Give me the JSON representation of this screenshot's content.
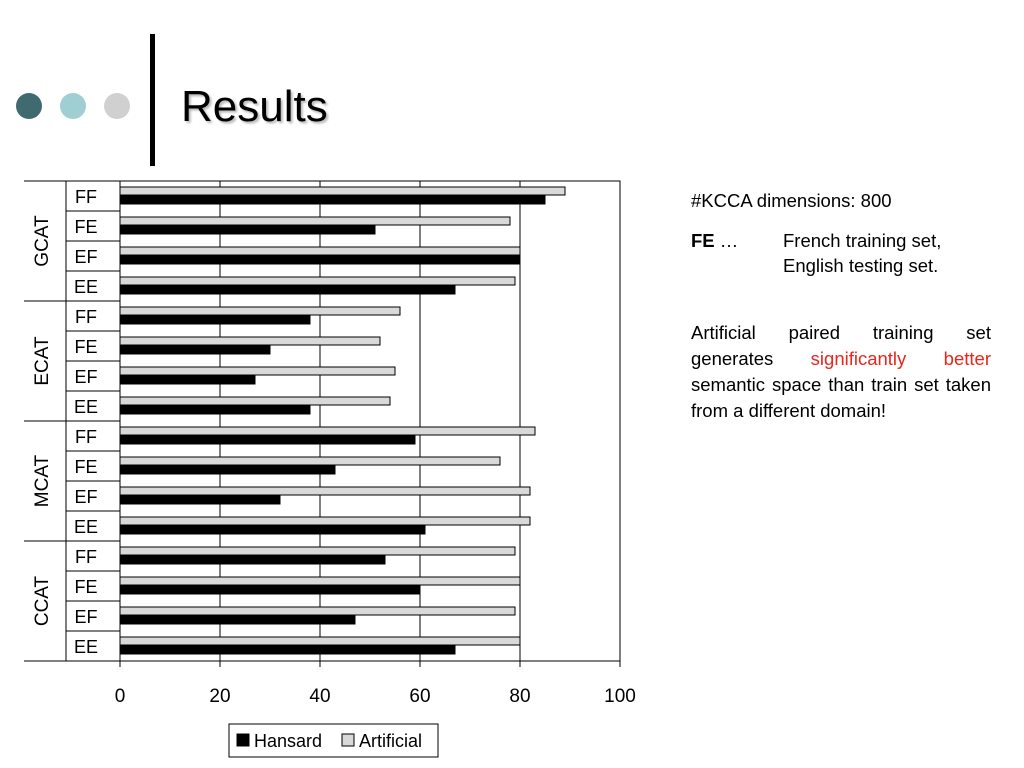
{
  "slide": {
    "title": "Results",
    "dot_colors": [
      "#3f6b70",
      "#9fcfd2",
      "#d0d0d0"
    ]
  },
  "side_panel": {
    "kcca": "#KCCA dimensions: 800",
    "fe_term": "FE",
    "fe_ellipsis": " …",
    "fe_line1": "French training set,",
    "fe_line2": "English testing set.",
    "para_part1": "Artificial paired training set generates ",
    "para_highlight": "significantly better",
    "para_part2": " semantic space than train set taken from a different domain!"
  },
  "chart_data": {
    "type": "bar",
    "orientation": "horizontal",
    "xlim": [
      0,
      100
    ],
    "xticks": [
      0,
      20,
      40,
      60,
      80,
      100
    ],
    "grid": true,
    "legend": "bottom",
    "groups": [
      {
        "name": "GCAT",
        "categories": [
          "FF",
          "FE",
          "EF",
          "EE"
        ]
      },
      {
        "name": "ECAT",
        "categories": [
          "FF",
          "FE",
          "EF",
          "EE"
        ]
      },
      {
        "name": "MCAT",
        "categories": [
          "FF",
          "FE",
          "EF",
          "EE"
        ]
      },
      {
        "name": "CCAT",
        "categories": [
          "FF",
          "FE",
          "EF",
          "EE"
        ]
      }
    ],
    "series": [
      {
        "name": "Artificial",
        "color": "#d9d9d9",
        "values": [
          89,
          78,
          80,
          79,
          56,
          52,
          55,
          54,
          83,
          76,
          82,
          82,
          79,
          80,
          79,
          80
        ]
      },
      {
        "name": "Hansard",
        "color": "#000000",
        "values": [
          85,
          51,
          80,
          67,
          38,
          30,
          27,
          38,
          59,
          43,
          32,
          61,
          53,
          60,
          47,
          67
        ]
      }
    ]
  }
}
